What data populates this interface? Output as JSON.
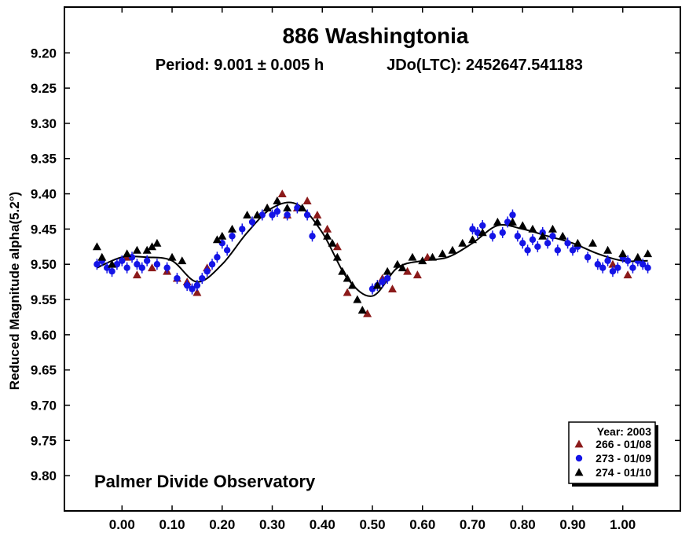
{
  "chart_data": {
    "type": "scatter",
    "title": "886 Washingtonia",
    "subtitle": {
      "period": "Period: 9.001 ± 0.005 h",
      "epoch": "JDo(LTC): 2452647.541183"
    },
    "ylabel": "Reduced Magnitude alpha(5.2°)",
    "xlabel": "",
    "xlim": [
      -0.115,
      1.115
    ],
    "ylim": [
      9.85,
      9.135
    ],
    "y_inverted": true,
    "x_ticks": [
      "0.00",
      "0.10",
      "0.20",
      "0.30",
      "0.40",
      "0.50",
      "0.60",
      "0.70",
      "0.80",
      "0.90",
      "1.00"
    ],
    "y_ticks": [
      "9.20",
      "9.25",
      "9.30",
      "9.35",
      "9.40",
      "9.45",
      "9.50",
      "9.55",
      "9.60",
      "9.65",
      "9.70",
      "9.75",
      "9.80"
    ],
    "annotation": "Palmer Divide Observatory",
    "grid": false,
    "legend": {
      "placement": "bottom-right",
      "title": "Year: 2003",
      "entries": [
        {
          "label": "266 - 01/08",
          "marker": "triangle",
          "color": "#8B1A1A"
        },
        {
          "label": "273 - 01/09",
          "marker": "circle",
          "color": "#1414E6"
        },
        {
          "label": "274 - 01/10",
          "marker": "triangle",
          "color": "#000000"
        }
      ]
    },
    "fit_curve": {
      "x": [
        -0.05,
        0.0,
        0.05,
        0.1,
        0.15,
        0.2,
        0.25,
        0.3,
        0.35,
        0.4,
        0.45,
        0.5,
        0.55,
        0.6,
        0.65,
        0.7,
        0.75,
        0.8,
        0.85,
        0.9,
        0.95,
        1.0,
        1.05
      ],
      "y": [
        9.505,
        9.49,
        9.49,
        9.495,
        9.525,
        9.5,
        9.455,
        9.42,
        9.415,
        9.455,
        9.52,
        9.545,
        9.505,
        9.495,
        9.49,
        9.47,
        9.445,
        9.45,
        9.46,
        9.47,
        9.485,
        9.495,
        9.495
      ]
    },
    "series": [
      {
        "name": "266 - 01/08",
        "marker": "triangle",
        "color": "#8B1A1A",
        "x": [
          0.01,
          0.03,
          0.06,
          0.09,
          0.11,
          0.13,
          0.15,
          0.17,
          0.29,
          0.31,
          0.32,
          0.33,
          0.35,
          0.37,
          0.39,
          0.41,
          0.43,
          0.45,
          0.49,
          0.52,
          0.54,
          0.57,
          0.59,
          0.61,
          0.98,
          1.01
        ],
        "y": [
          9.49,
          9.515,
          9.505,
          9.51,
          9.52,
          9.525,
          9.54,
          9.505,
          9.42,
          9.41,
          9.4,
          9.43,
          9.42,
          9.41,
          9.43,
          9.45,
          9.475,
          9.54,
          9.57,
          9.52,
          9.535,
          9.51,
          9.515,
          9.49,
          9.5,
          9.515
        ]
      },
      {
        "name": "273 - 01/09",
        "marker": "circle",
        "color": "#1414E6",
        "x": [
          -0.05,
          -0.04,
          -0.03,
          -0.02,
          -0.01,
          0.0,
          0.01,
          0.02,
          0.03,
          0.04,
          0.05,
          0.07,
          0.09,
          0.11,
          0.13,
          0.14,
          0.15,
          0.16,
          0.17,
          0.18,
          0.19,
          0.2,
          0.21,
          0.22,
          0.24,
          0.26,
          0.28,
          0.3,
          0.31,
          0.33,
          0.35,
          0.37,
          0.38,
          0.5,
          0.51,
          0.52,
          0.53,
          0.7,
          0.71,
          0.72,
          0.74,
          0.76,
          0.77,
          0.78,
          0.79,
          0.8,
          0.81,
          0.82,
          0.83,
          0.84,
          0.85,
          0.86,
          0.87,
          0.89,
          0.9,
          0.91,
          0.93,
          0.95,
          0.96,
          0.97,
          0.98,
          0.99,
          1.0,
          1.01,
          1.02,
          1.03,
          1.04,
          1.05
        ],
        "y": [
          9.5,
          9.495,
          9.505,
          9.51,
          9.5,
          9.495,
          9.505,
          9.49,
          9.5,
          9.505,
          9.495,
          9.5,
          9.505,
          9.52,
          9.53,
          9.535,
          9.53,
          9.52,
          9.51,
          9.5,
          9.49,
          9.47,
          9.48,
          9.46,
          9.45,
          9.44,
          9.43,
          9.43,
          9.425,
          9.43,
          9.42,
          9.43,
          9.46,
          9.535,
          9.53,
          9.525,
          9.52,
          9.45,
          9.455,
          9.445,
          9.46,
          9.455,
          9.44,
          9.43,
          9.46,
          9.47,
          9.48,
          9.465,
          9.475,
          9.455,
          9.47,
          9.46,
          9.48,
          9.47,
          9.48,
          9.475,
          9.49,
          9.5,
          9.505,
          9.495,
          9.51,
          9.505,
          9.49,
          9.495,
          9.505,
          9.495,
          9.5,
          9.505
        ]
      },
      {
        "name": "274 - 01/10",
        "marker": "triangle",
        "color": "#000000",
        "x": [
          -0.05,
          -0.04,
          -0.02,
          0.01,
          0.03,
          0.05,
          0.06,
          0.07,
          0.1,
          0.12,
          0.19,
          0.2,
          0.22,
          0.25,
          0.27,
          0.29,
          0.31,
          0.33,
          0.36,
          0.39,
          0.41,
          0.42,
          0.43,
          0.44,
          0.45,
          0.46,
          0.47,
          0.48,
          0.51,
          0.53,
          0.55,
          0.56,
          0.58,
          0.6,
          0.62,
          0.64,
          0.66,
          0.68,
          0.7,
          0.72,
          0.75,
          0.78,
          0.8,
          0.82,
          0.84,
          0.86,
          0.88,
          0.91,
          0.94,
          0.97,
          1.0,
          1.03,
          1.05
        ],
        "y": [
          9.475,
          9.49,
          9.5,
          9.485,
          9.48,
          9.48,
          9.475,
          9.47,
          9.49,
          9.495,
          9.465,
          9.46,
          9.45,
          9.43,
          9.43,
          9.42,
          9.41,
          9.42,
          9.42,
          9.44,
          9.46,
          9.47,
          9.49,
          9.51,
          9.52,
          9.53,
          9.55,
          9.565,
          9.53,
          9.51,
          9.5,
          9.505,
          9.49,
          9.495,
          9.49,
          9.485,
          9.48,
          9.47,
          9.465,
          9.455,
          9.44,
          9.44,
          9.445,
          9.45,
          9.46,
          9.45,
          9.46,
          9.47,
          9.47,
          9.48,
          9.485,
          9.49,
          9.485
        ]
      }
    ]
  }
}
